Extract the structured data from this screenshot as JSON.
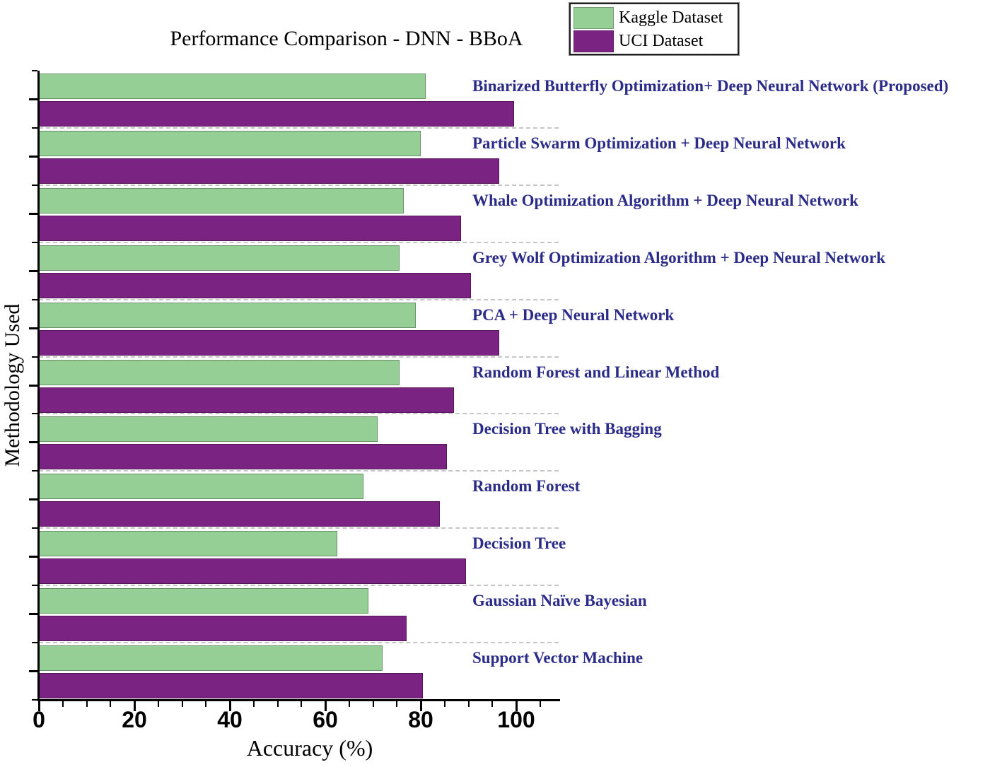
{
  "chart_data": {
    "type": "bar",
    "orientation": "horizontal",
    "title": "Performance Comparison - DNN - BBoA",
    "xlabel": "Accuracy (%)",
    "ylabel": "Methodology Used",
    "xlim": [
      0,
      108
    ],
    "x_major_ticks": [
      "0",
      "20",
      "40",
      "60",
      "80",
      "100"
    ],
    "x_minor_tick_step": 5,
    "grid": "dashed horizontal separators between categories",
    "legend_position": "top-right",
    "label_color": "#2b2b8a",
    "categories": [
      "Binarized Butterfly Optimization+ Deep Neural Network (Proposed)",
      "Particle Swarm Optimization + Deep Neural Network",
      "Whale Optimization Algorithm + Deep Neural Network",
      "Grey Wolf Optimization Algorithm + Deep Neural Network",
      "PCA + Deep Neural Network",
      "Random Forest and Linear Method",
      "Decision Tree with Bagging",
      "Random Forest",
      "Decision Tree",
      "Gaussian Naïve Bayesian",
      "Support Vector Machine"
    ],
    "series": [
      {
        "name": "Kaggle Dataset",
        "color": "#96cf96",
        "values": [
          81,
          80,
          76.5,
          75.5,
          79,
          75.5,
          71,
          68,
          62.5,
          69,
          72
        ]
      },
      {
        "name": "UCI Dataset",
        "color": "#7b2382",
        "values": [
          99.5,
          96.5,
          88.5,
          90.5,
          96.5,
          87,
          85.5,
          84,
          89.5,
          77,
          80.5
        ]
      }
    ]
  }
}
